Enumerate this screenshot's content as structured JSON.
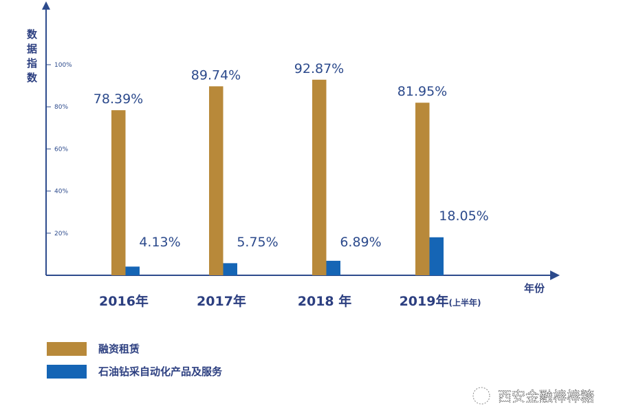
{
  "chart_data": {
    "type": "bar",
    "ylabel": "数据指数",
    "xlabel": "年份",
    "categories": [
      "2016年",
      "2017年",
      "2018 年",
      "2019年"
    ],
    "category_suffix": [
      "",
      "",
      "",
      "(上半年)"
    ],
    "yticks": [
      "20%",
      "40%",
      "60%",
      "80%",
      "100%"
    ],
    "ylim": [
      0,
      100
    ],
    "grid": false,
    "legend_placement": "bottom-left",
    "series": [
      {
        "name": "融资租赁",
        "color": "#b8893a",
        "values": [
          78.39,
          89.74,
          92.87,
          81.95
        ],
        "labels": [
          "78.39%",
          "89.74%",
          "92.87%",
          "81.95%"
        ]
      },
      {
        "name": "石油钻采自动化产品及服务",
        "color": "#1565b5",
        "values": [
          4.13,
          5.75,
          6.89,
          18.05
        ],
        "labels": [
          "4.13%",
          "5.75%",
          "6.89%",
          "18.05%"
        ]
      }
    ]
  },
  "watermark": "西安金融棒棒糖",
  "colors": {
    "axis": "#2c4a8c"
  }
}
